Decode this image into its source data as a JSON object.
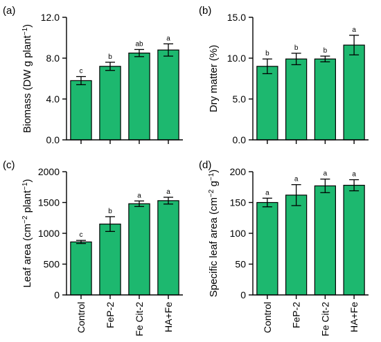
{
  "figure": {
    "categories": [
      "Control",
      "FeP-2",
      "Fe Cit-2",
      "HA+Fe"
    ],
    "bar_color": "#1DB86F",
    "edge_color": "#000000"
  },
  "chart_data": [
    {
      "type": "bar",
      "panel_label": "(a)",
      "categories": [
        "Control",
        "FeP-2",
        "Fe Cit-2",
        "HA+Fe"
      ],
      "values": [
        5.8,
        7.2,
        8.5,
        8.8
      ],
      "errors": [
        0.4,
        0.4,
        0.35,
        0.6
      ],
      "significance": [
        "c",
        "b",
        "ab",
        "a"
      ],
      "ylabel": "Biomass (DW g plant",
      "ylabel_sup": "−1",
      "ylabel_tail": ")",
      "ylim": [
        0,
        12
      ],
      "yticks": [
        0,
        4,
        8,
        12
      ],
      "ytick_labels": [
        "0.0",
        "4.0",
        "8.0",
        "12.0"
      ]
    },
    {
      "type": "bar",
      "panel_label": "(b)",
      "categories": [
        "Control",
        "FeP-2",
        "Fe Cit-2",
        "HA+Fe"
      ],
      "values": [
        9.0,
        9.9,
        9.9,
        11.6
      ],
      "errors": [
        0.9,
        0.7,
        0.35,
        1.2
      ],
      "significance": [
        "b",
        "b",
        "b",
        "a"
      ],
      "ylabel": "Dry matter (%)",
      "ylabel_sup": "",
      "ylabel_tail": "",
      "ylim": [
        0,
        15
      ],
      "yticks": [
        0,
        5,
        10,
        15
      ],
      "ytick_labels": [
        "0.0",
        "5.0",
        "10.0",
        "15.0"
      ]
    },
    {
      "type": "bar",
      "panel_label": "(c)",
      "categories": [
        "Control",
        "FeP-2",
        "Fe Cit-2",
        "HA+Fe"
      ],
      "values": [
        860,
        1150,
        1480,
        1530
      ],
      "errors": [
        25,
        120,
        45,
        55
      ],
      "significance": [
        "c",
        "b",
        "a",
        "a"
      ],
      "ylabel": "Leaf area (cm",
      "ylabel_sup": "−2",
      "ylabel_mid": " plant",
      "ylabel_sup2": "−1",
      "ylabel_tail": ")",
      "ylim": [
        0,
        2000
      ],
      "yticks": [
        0,
        500,
        1000,
        1500,
        2000
      ],
      "ytick_labels": [
        "0",
        "500",
        "1000",
        "1500",
        "2000"
      ]
    },
    {
      "type": "bar",
      "panel_label": "(d)",
      "categories": [
        "Control",
        "FeP-2",
        "Fe Cit-2",
        "HA+Fe"
      ],
      "values": [
        150,
        162,
        177,
        178
      ],
      "errors": [
        7,
        17,
        11,
        9
      ],
      "significance": [
        "a",
        "a",
        "a",
        "a"
      ],
      "ylabel": "Specific leaf area (cm",
      "ylabel_sup": "−2",
      "ylabel_mid": " g",
      "ylabel_sup2": "−1",
      "ylabel_tail": ")",
      "ylim": [
        0,
        200
      ],
      "yticks": [
        0,
        50,
        100,
        150,
        200
      ],
      "ytick_labels": [
        "0",
        "50",
        "100",
        "150",
        "200"
      ]
    }
  ]
}
